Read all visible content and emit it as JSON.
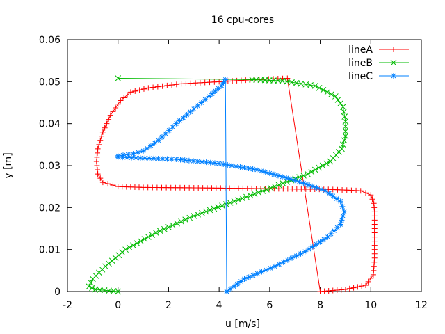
{
  "chart_data": {
    "type": "line",
    "title": "16 cpu-cores",
    "xlabel": "u [m/s]",
    "ylabel": "y [m]",
    "xlim": [
      -2,
      12
    ],
    "ylim": [
      0,
      0.06
    ],
    "xticks": [
      "-2",
      "0",
      "2",
      "4",
      "6",
      "8",
      "10",
      "12"
    ],
    "yticks": [
      "0",
      "0.01",
      "0.02",
      "0.03",
      "0.04",
      "0.05",
      "0.06"
    ],
    "grid": false,
    "legend_position": "top-right",
    "series": [
      {
        "name": "lineA",
        "color": "#ff0000",
        "marker": "plus",
        "x": [
          8.0,
          9.0,
          9.8,
          10.1,
          10.15,
          10.15,
          10.15,
          10.15,
          10.12,
          10.0,
          9.6,
          8.5,
          6.0,
          3.0,
          1.0,
          0.0,
          -0.6,
          -0.8,
          -0.85,
          -0.8,
          -0.6,
          -0.3,
          0.1,
          0.5,
          1.2,
          2.5,
          4.0,
          5.4,
          6.7,
          8.0
        ],
        "y": [
          0.0,
          0.0005,
          0.0015,
          0.004,
          0.008,
          0.012,
          0.016,
          0.019,
          0.021,
          0.023,
          0.024,
          0.0243,
          0.0245,
          0.0247,
          0.0248,
          0.025,
          0.026,
          0.028,
          0.031,
          0.034,
          0.038,
          0.042,
          0.0455,
          0.0475,
          0.0485,
          0.0495,
          0.05,
          0.0505,
          0.0508,
          0.0
        ]
      },
      {
        "name": "lineB",
        "color": "#00bb00",
        "marker": "x",
        "x": [
          0.0,
          -0.9,
          -1.15,
          -1.0,
          -0.5,
          0.3,
          1.5,
          3.0,
          4.6,
          6.2,
          7.5,
          8.4,
          8.85,
          9.0,
          9.0,
          8.9,
          8.6,
          7.8,
          6.5,
          5.3,
          0.0
        ],
        "y": [
          0.0,
          0.0005,
          0.0012,
          0.003,
          0.006,
          0.01,
          0.014,
          0.018,
          0.0215,
          0.025,
          0.028,
          0.031,
          0.034,
          0.037,
          0.0405,
          0.044,
          0.0465,
          0.049,
          0.0502,
          0.0505,
          0.0508
        ]
      },
      {
        "name": "lineC",
        "color": "#0080ff",
        "marker": "star",
        "x": [
          4.3,
          5.0,
          6.2,
          7.4,
          8.3,
          8.8,
          8.95,
          8.8,
          8.2,
          7.0,
          5.5,
          4.0,
          2.3,
          0.0,
          0.0,
          0.6,
          1.0,
          1.6,
          2.3,
          3.0,
          3.6,
          4.1,
          4.25,
          4.3
        ],
        "y": [
          0.0,
          0.003,
          0.006,
          0.0095,
          0.013,
          0.016,
          0.019,
          0.0215,
          0.024,
          0.0265,
          0.029,
          0.0305,
          0.0315,
          0.032,
          0.0323,
          0.0328,
          0.0335,
          0.036,
          0.04,
          0.0435,
          0.0465,
          0.049,
          0.0505,
          0.0
        ]
      }
    ]
  }
}
